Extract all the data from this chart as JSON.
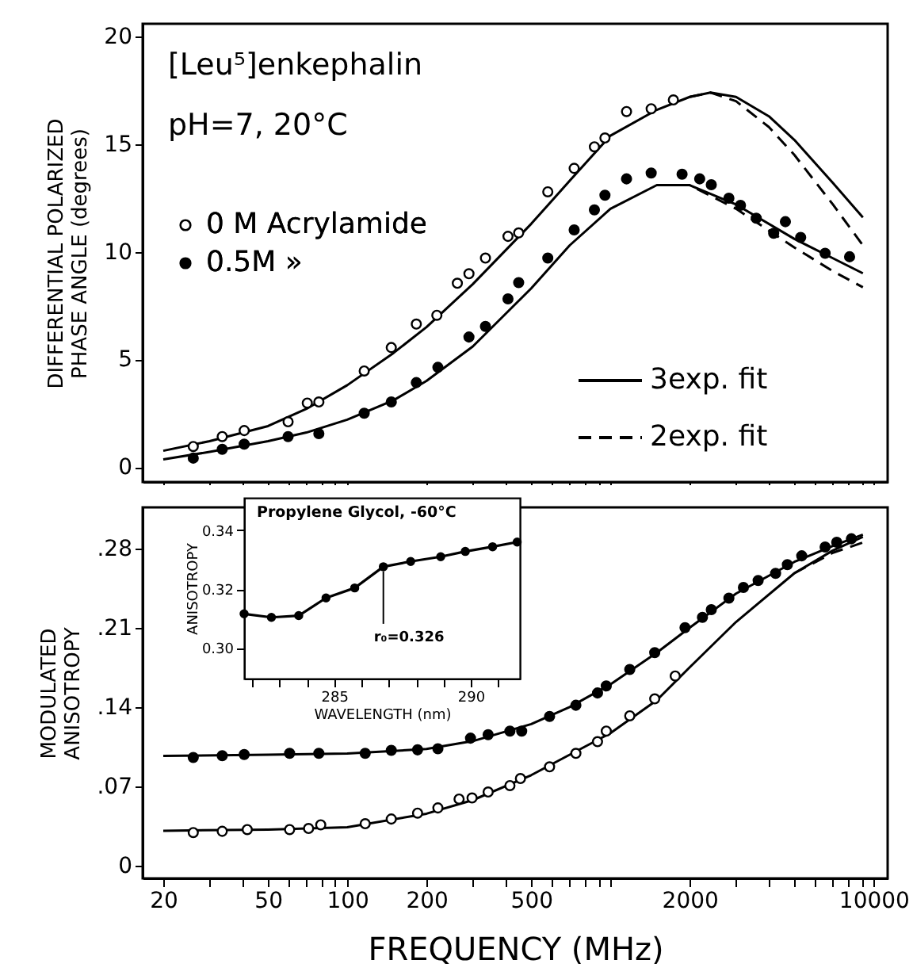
{
  "chart_data": [
    {
      "type": "scatter",
      "title": "[Leu⁵]enkephalin",
      "subtitle": "pH=7,  20°C",
      "ylabel": "DIFFERENTIAL POLARIZED\nPHASE ANGLE (degrees)",
      "log": "x",
      "xlim": [
        16.7,
        11300
      ],
      "xticks": [
        20,
        {
          "value": 30,
          "label": null
        },
        {
          "value": 40,
          "label": null
        },
        50,
        {
          "value": 60,
          "label": null
        },
        {
          "value": 70,
          "label": null
        },
        {
          "value": 80,
          "label": null
        },
        {
          "value": 90,
          "label": null
        },
        100,
        200,
        {
          "value": 300,
          "label": null
        },
        {
          "value": 400,
          "label": null
        },
        500,
        {
          "value": 600,
          "label": null
        },
        {
          "value": 700,
          "label": null
        },
        {
          "value": 800,
          "label": null
        },
        {
          "value": 900,
          "label": null
        },
        {
          "value": 1000,
          "label": null
        },
        2000,
        {
          "value": 3000,
          "label": null
        },
        {
          "value": 4000,
          "label": null
        },
        {
          "value": 5000,
          "label": null
        },
        {
          "value": 6000,
          "label": null
        },
        {
          "value": 7000,
          "label": null
        },
        {
          "value": 8000,
          "label": null
        },
        {
          "value": 9000,
          "label": null
        },
        10000
      ],
      "ylim": [
        -0.7,
        20.6
      ],
      "yticks": [
        0,
        5,
        10,
        15,
        20
      ],
      "tick_labels": "y",
      "legend": "left",
      "color": "#000000",
      "series": [
        {
          "name": "0 M Acrylamide",
          "color": "#ffffff",
          "marker": "circle",
          "x": [
            26,
            33.5,
            40.6,
            59.6,
            70.5,
            78,
            116,
            147,
            183,
            219,
            262,
            290,
            335,
            408,
            448,
            578,
            728,
            869,
            953,
            1151,
            1428,
            1734
          ],
          "values": [
            0.95,
            1.41,
            1.69,
            2.1,
            2.97,
            3.02,
            4.46,
            5.55,
            6.64,
            7.05,
            8.54,
            8.98,
            9.71,
            10.72,
            10.88,
            12.79,
            13.88,
            14.88,
            15.29,
            16.52,
            16.65,
            17.06
          ]
        },
        {
          "name": "0.5M »",
          "color": "#000000",
          "marker": "circle",
          "x": [
            26,
            33.5,
            40.6,
            59.6,
            78,
            116,
            147,
            183,
            221,
            290,
            335,
            408,
            448,
            578,
            728,
            869,
            953,
            1151,
            1428,
            1871,
            2183,
            2416,
            2818,
            3119,
            3580,
            4170,
            4620,
            5280,
            6540,
            8100
          ],
          "values": [
            0.41,
            0.82,
            1.06,
            1.41,
            1.55,
            2.5,
            3.02,
            3.92,
            4.63,
            6.04,
            6.53,
            7.81,
            8.57,
            9.71,
            11.02,
            11.95,
            12.63,
            13.39,
            13.66,
            13.61,
            13.39,
            13.12,
            12.49,
            12.16,
            11.56,
            10.86,
            11.4,
            10.67,
            9.93,
            9.77
          ]
        },
        {
          "type": "line",
          "name": "3exp. fit",
          "color": "#000000",
          "line_style": "solid",
          "x": [
            20,
            30,
            50,
            70,
            100,
            150,
            200,
            300,
            500,
            700,
            1000,
            1500,
            2000,
            2400,
            3000,
            4000,
            5000,
            7000,
            9100
          ],
          "values": [
            0.75,
            1.2,
            1.9,
            2.7,
            3.8,
            5.3,
            6.5,
            8.5,
            11.3,
            13.3,
            15.4,
            16.6,
            17.2,
            17.4,
            17.2,
            16.3,
            15.2,
            13.2,
            11.6
          ]
        },
        {
          "type": "line",
          "color": "#000000",
          "line_style": "solid",
          "x": [
            20,
            30,
            50,
            70,
            100,
            150,
            200,
            300,
            500,
            700,
            1000,
            1500,
            2000,
            3000,
            5000,
            7000,
            9100
          ],
          "values": [
            0.35,
            0.7,
            1.2,
            1.6,
            2.2,
            3.1,
            4.0,
            5.6,
            8.3,
            10.3,
            12.0,
            13.1,
            13.1,
            12.2,
            10.6,
            9.7,
            9.0
          ]
        },
        {
          "type": "line",
          "name": "2exp. fit",
          "color": "#000000",
          "line_style": "dashed",
          "x": [
            2000,
            2400,
            3000,
            4000,
            5000,
            7000,
            9100
          ],
          "values": [
            17.2,
            17.4,
            17.0,
            15.8,
            14.5,
            12.2,
            10.3
          ]
        },
        {
          "type": "line",
          "color": "#000000",
          "line_style": "dashed",
          "x": [
            1500,
            2000,
            3000,
            5000,
            7000,
            9100
          ],
          "values": [
            13.1,
            13.1,
            12.0,
            10.2,
            9.1,
            8.35
          ]
        }
      ]
    },
    {
      "type": "scatter",
      "xlabel": "FREQUENCY (MHz)",
      "ylabel": "MODULATED\nANISOTROPY",
      "log": "x",
      "xlim": [
        16.7,
        11300
      ],
      "xticks": [
        20,
        {
          "value": 30,
          "label": null
        },
        {
          "value": 40,
          "label": null
        },
        50,
        {
          "value": 60,
          "label": null
        },
        {
          "value": 70,
          "label": null
        },
        {
          "value": 80,
          "label": null
        },
        {
          "value": 90,
          "label": null
        },
        100,
        200,
        {
          "value": 300,
          "label": null
        },
        {
          "value": 400,
          "label": null
        },
        500,
        {
          "value": 600,
          "label": null
        },
        {
          "value": 700,
          "label": null
        },
        {
          "value": 800,
          "label": null
        },
        {
          "value": 900,
          "label": null
        },
        {
          "value": 1000,
          "label": null
        },
        2000,
        {
          "value": 3000,
          "label": null
        },
        {
          "value": 4000,
          "label": null
        },
        {
          "value": 5000,
          "label": null
        },
        {
          "value": 6000,
          "label": null
        },
        {
          "value": 7000,
          "label": null
        },
        {
          "value": 8000,
          "label": null
        },
        {
          "value": 9000,
          "label": null
        },
        10000
      ],
      "ylim": [
        -0.011,
        0.316
      ],
      "yticks": [
        0,
        {
          "value": 0.07,
          "label": ".07"
        },
        {
          "value": 0.14,
          "label": ".14"
        },
        {
          "value": 0.21,
          "label": ".21"
        },
        {
          "value": 0.28,
          "label": ".28"
        }
      ],
      "color": "#000000",
      "series": [
        {
          "color": "#000000",
          "marker": "circle",
          "x": [
            26,
            33.5,
            40.6,
            60.4,
            78,
            117,
            147,
            185,
            221,
            294,
            343,
            415,
            460,
            587,
            739,
            893,
            964,
            1184,
            1473,
            1920,
            2236,
            2416,
            2818,
            3200,
            3640,
            4240,
            4700,
            5330,
            6540,
            7240,
            8230
          ],
          "values": [
            0.0956,
            0.0971,
            0.0982,
            0.0992,
            0.0992,
            0.0992,
            0.1018,
            0.1023,
            0.1033,
            0.1126,
            0.1157,
            0.1188,
            0.1188,
            0.1317,
            0.1416,
            0.1524,
            0.1586,
            0.1731,
            0.188,
            0.21,
            0.219,
            0.2258,
            0.236,
            0.2454,
            0.2516,
            0.2578,
            0.2655,
            0.2733,
            0.281,
            0.2852,
            0.2883
          ]
        },
        {
          "color": "#ffffff",
          "marker": "circle",
          "x": [
            26,
            33.5,
            41.7,
            60.4,
            71.3,
            79.3,
            117,
            147,
            185,
            221,
            266,
            298,
            343,
            415,
            455,
            587,
            739,
            893,
            964,
            1184,
            1473,
            1762
          ],
          "values": [
            0.0294,
            0.0305,
            0.032,
            0.032,
            0.033,
            0.0362,
            0.0372,
            0.0413,
            0.0465,
            0.0511,
            0.0589,
            0.0599,
            0.0651,
            0.0708,
            0.077,
            0.0873,
            0.0992,
            0.1095,
            0.1188,
            0.1323,
            0.1472,
            0.1674
          ]
        },
        {
          "type": "line",
          "color": "#000000",
          "line_style": "solid",
          "x": [
            20,
            50,
            100,
            200,
            300,
            500,
            700,
            1000,
            1500,
            2000,
            3000,
            5000,
            7000,
            9100
          ],
          "values": [
            0.097,
            0.098,
            0.099,
            0.103,
            0.11,
            0.125,
            0.14,
            0.16,
            0.188,
            0.21,
            0.24,
            0.268,
            0.282,
            0.292
          ]
        },
        {
          "type": "line",
          "color": "#000000",
          "line_style": "solid",
          "x": [
            20,
            50,
            100,
            200,
            300,
            500,
            700,
            1000,
            1500,
            2000,
            3000,
            5000,
            7000,
            9100
          ],
          "values": [
            0.031,
            0.032,
            0.034,
            0.046,
            0.058,
            0.08,
            0.098,
            0.117,
            0.146,
            0.175,
            0.215,
            0.258,
            0.278,
            0.29
          ]
        },
        {
          "type": "line",
          "color": "#000000",
          "line_style": "dashed",
          "x": [
            5000,
            7000,
            9100
          ],
          "values": [
            0.258,
            0.276,
            0.285
          ]
        }
      ]
    },
    {
      "type": "line",
      "title": "Propylene Glycol, -60°C",
      "xlabel": "WAVELENGTH (nm)",
      "ylabel": "ANISOTROPY",
      "xlim": [
        281.7,
        291.8
      ],
      "xticks": [
        {
          "value": 282,
          "label": null
        },
        {
          "value": 283,
          "label": null
        },
        {
          "value": 284,
          "label": null
        },
        285,
        {
          "value": 286,
          "label": null
        },
        {
          "value": 287,
          "label": null
        },
        {
          "value": 288,
          "label": null
        },
        {
          "value": 289,
          "label": null
        },
        290,
        {
          "value": 291,
          "label": null
        }
      ],
      "ylim": [
        0.2896,
        0.351
      ],
      "yticks": [
        {
          "value": 0.3,
          "label": "0.30"
        },
        {
          "value": 0.32,
          "label": "0.32"
        },
        {
          "value": 0.34,
          "label": "0.34"
        }
      ],
      "marker": "circle",
      "color": "#000000",
      "annotations": [
        {
          "text": "r₀=0.326",
          "x": 286.8,
          "y": 0.3276
        }
      ],
      "x": [
        281.7,
        282.7,
        283.7,
        284.7,
        285.75,
        286.8,
        287.8,
        288.9,
        289.8,
        290.8,
        291.7
      ],
      "values": [
        0.3116,
        0.3104,
        0.311,
        0.317,
        0.3204,
        0.3276,
        0.3294,
        0.331,
        0.3328,
        0.3344,
        0.336
      ]
    }
  ]
}
